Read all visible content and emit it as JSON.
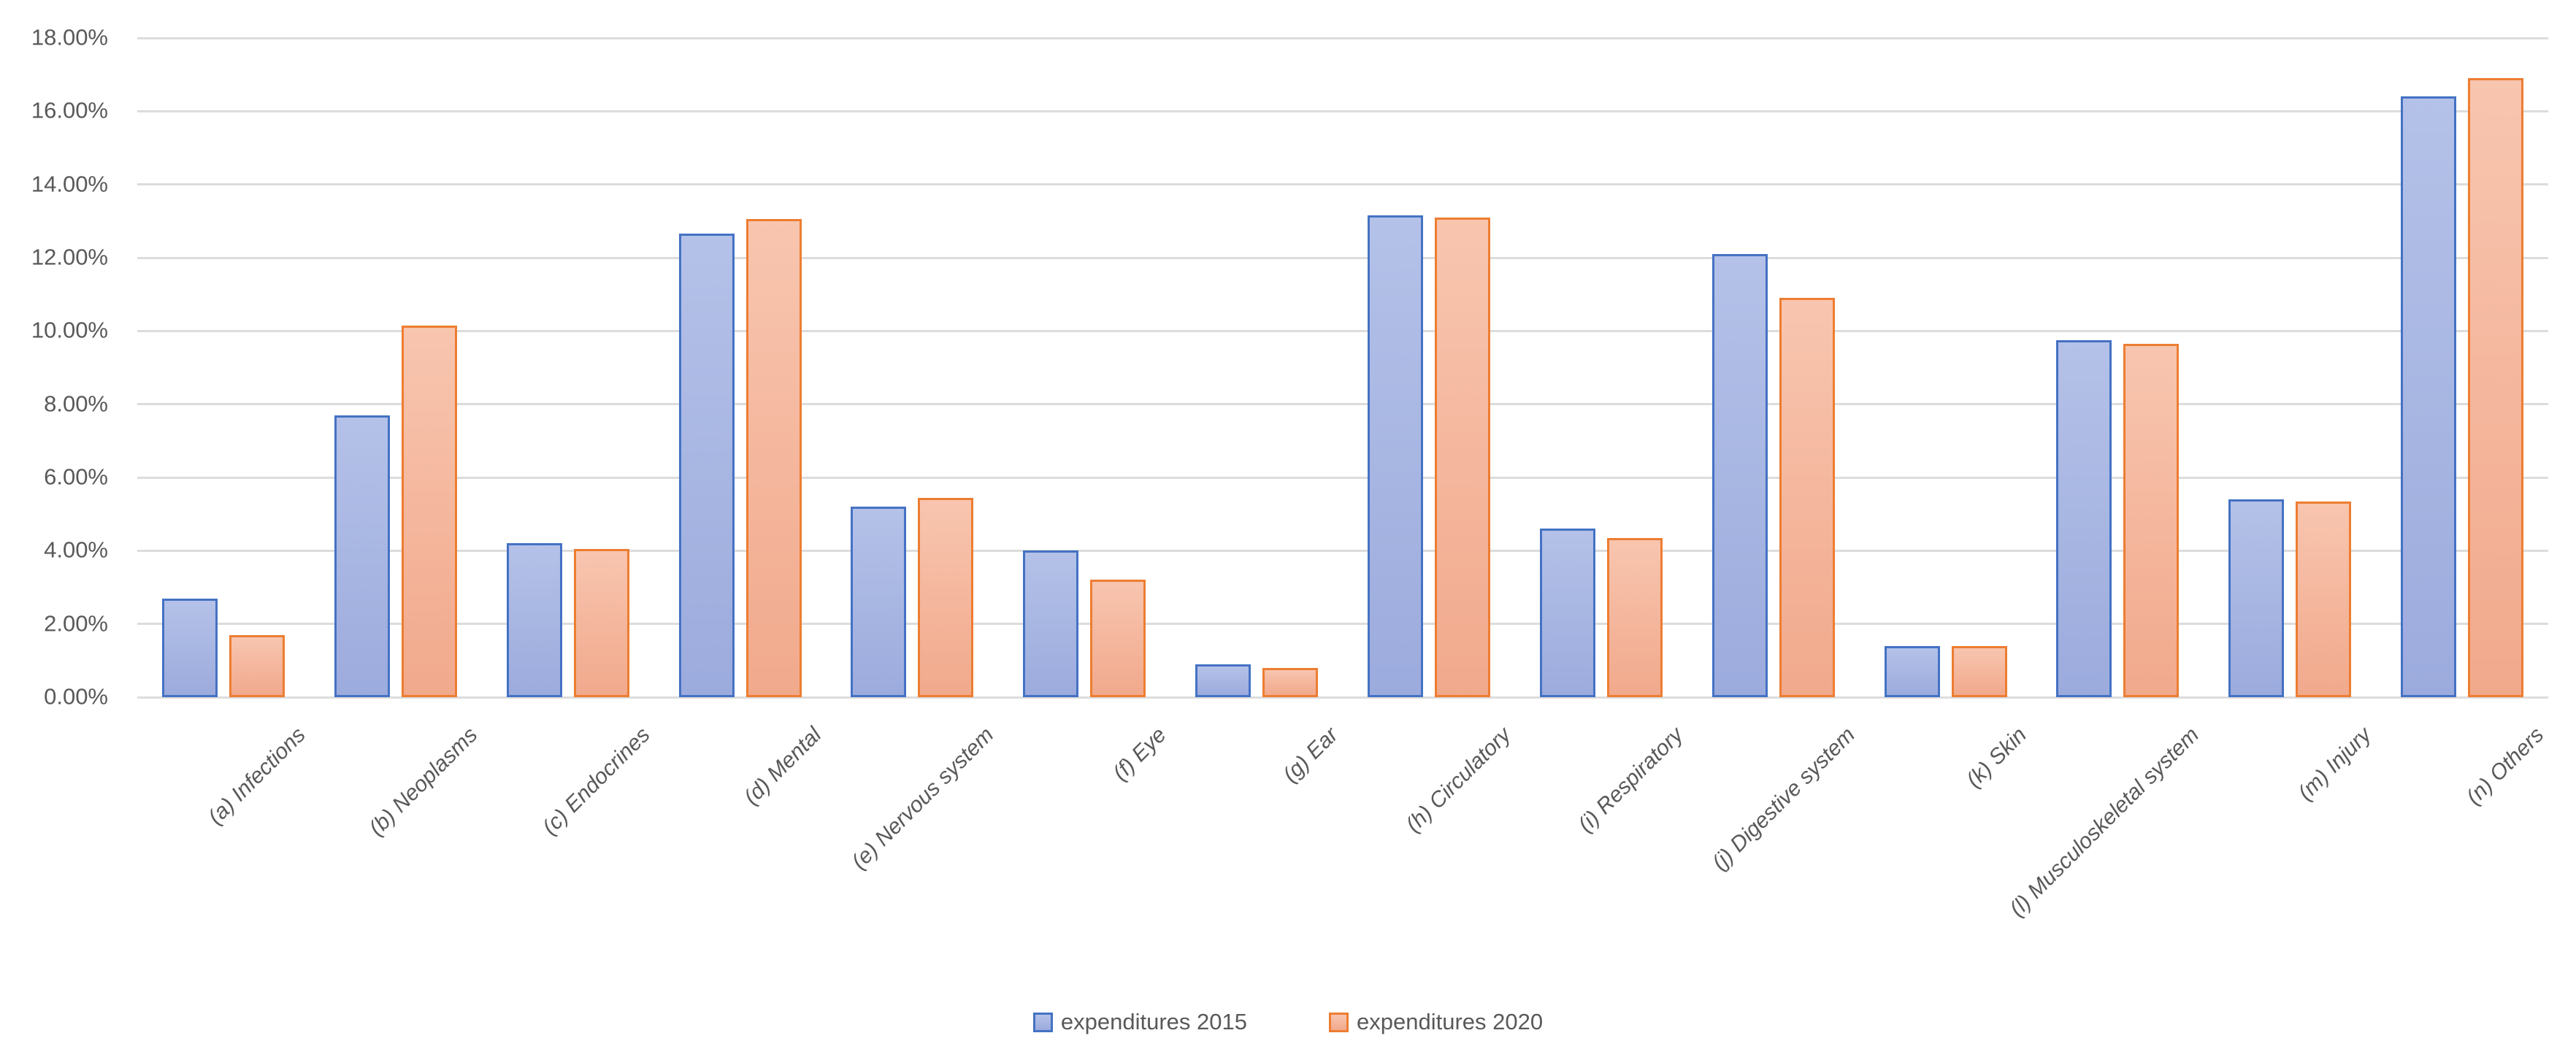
{
  "chart_data": {
    "type": "bar",
    "title": "",
    "xlabel": "",
    "ylabel": "",
    "categories": [
      "(a) Infections",
      "(b) Neoplasms",
      "(c) Endocrines",
      "(d) Mental",
      "(e) Nervous system",
      "(f) Eye",
      "(g) Ear",
      "(h) Circulatory",
      "(i) Respiratory",
      "(j) Digestive system",
      "(k) Skin",
      "(l) Musculoskeletal system",
      "(m) Injury",
      "(n) Others"
    ],
    "series": [
      {
        "name": "expenditures 2015",
        "values": [
          2.7,
          7.7,
          4.2,
          12.65,
          5.2,
          4.0,
          0.9,
          13.15,
          4.6,
          12.1,
          1.4,
          9.75,
          5.4,
          16.4
        ],
        "fill_light": "#b4c1e8",
        "fill_dark": "#9cabdd",
        "border": "#4472c4"
      },
      {
        "name": "expenditures 2020",
        "values": [
          1.7,
          10.15,
          4.05,
          13.05,
          5.45,
          3.2,
          0.8,
          13.1,
          4.35,
          10.9,
          1.4,
          9.65,
          5.35,
          16.9
        ],
        "fill_light": "#f8c5af",
        "fill_dark": "#f1a98c",
        "border": "#ed7d31"
      }
    ],
    "ylim": [
      0,
      18
    ],
    "ytick_step": 2,
    "ytick_labels": [
      "0.00%",
      "2.00%",
      "4.00%",
      "6.00%",
      "8.00%",
      "10.00%",
      "12.00%",
      "14.00%",
      "16.00%",
      "18.00%"
    ],
    "grid": true,
    "gridline_color": "#dcdcdc",
    "axis_text_color": "#595959",
    "legend_position": "bottom"
  }
}
